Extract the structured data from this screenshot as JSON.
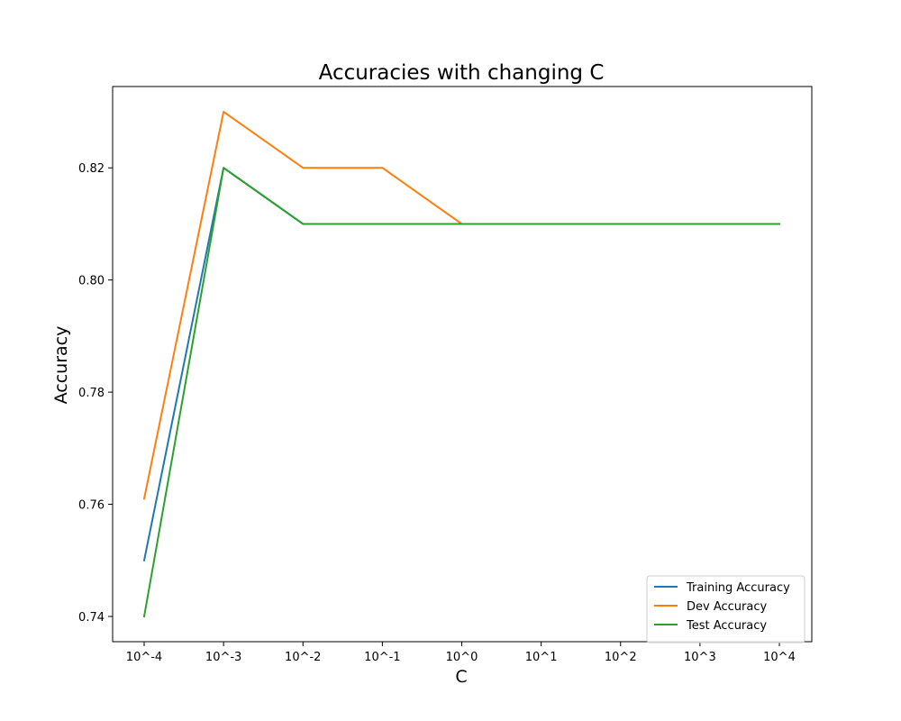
{
  "chart_data": {
    "type": "line",
    "title": "Accuracies with changing C",
    "xlabel": "C",
    "ylabel": "Accuracy",
    "categories": [
      "10^-4",
      "10^-3",
      "10^-2",
      "10^-1",
      "10^0",
      "10^1",
      "10^2",
      "10^3",
      "10^4"
    ],
    "yticks": [
      "0.74",
      "0.76",
      "0.78",
      "0.80",
      "0.82"
    ],
    "ylim": [
      0.7355,
      0.8345
    ],
    "grid": false,
    "legend_position": "lower-right",
    "series": [
      {
        "name": "Training Accuracy",
        "color": "#1f77b4",
        "values": [
          0.75,
          0.82,
          0.81,
          0.81,
          0.81,
          0.81,
          0.81,
          0.81,
          0.81
        ]
      },
      {
        "name": "Dev Accuracy",
        "color": "#ff7f0e",
        "values": [
          0.761,
          0.83,
          0.82,
          0.82,
          0.81,
          0.81,
          0.81,
          0.81,
          0.81
        ]
      },
      {
        "name": "Test Accuracy",
        "color": "#2ca02c",
        "values": [
          0.74,
          0.82,
          0.81,
          0.81,
          0.81,
          0.81,
          0.81,
          0.81,
          0.81
        ]
      }
    ]
  }
}
